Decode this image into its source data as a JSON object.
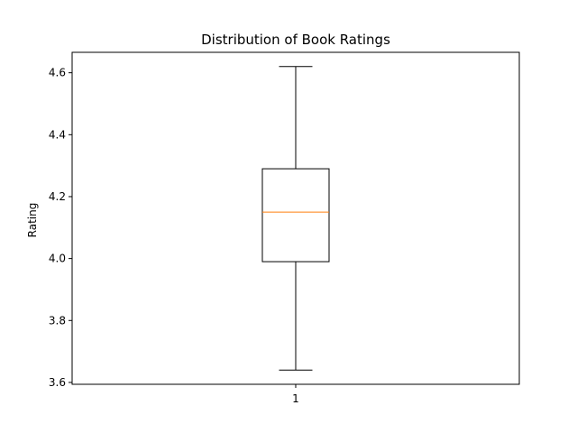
{
  "chart_data": {
    "type": "box",
    "title": "Distribution of Book Ratings",
    "xlabel": "",
    "ylabel": "Rating",
    "categories": [
      "1"
    ],
    "boxes": [
      {
        "category": "1",
        "min": 3.64,
        "q1": 3.99,
        "median": 4.15,
        "q3": 4.29,
        "max": 4.62
      }
    ],
    "ylim": [
      3.594,
      4.666
    ],
    "yticks": [
      3.6,
      3.8,
      4.0,
      4.2,
      4.4,
      4.6
    ],
    "ytick_labels": [
      "3.6",
      "3.8",
      "4.0",
      "4.2",
      "4.4",
      "4.6"
    ],
    "grid": false,
    "colors": {
      "box": "#000000",
      "median": "#ff7f0e",
      "whisker": "#000000"
    }
  }
}
